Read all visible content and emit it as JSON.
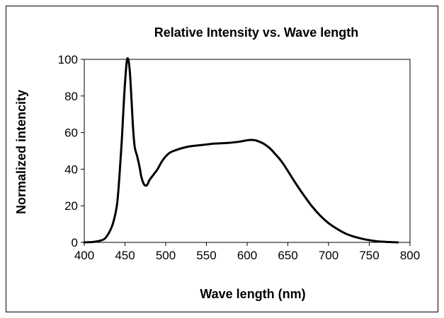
{
  "chart_data": {
    "type": "line",
    "title": "Relative Intensity vs. Wave length",
    "xlabel": "Wave length (nm)",
    "ylabel": "Normalized intencity",
    "xlim": [
      400,
      800
    ],
    "ylim": [
      0,
      100
    ],
    "x_ticks": [
      "400",
      "450",
      "500",
      "550",
      "600",
      "650",
      "700",
      "750",
      "800"
    ],
    "y_ticks": [
      "0",
      "20",
      "40",
      "60",
      "80",
      "100"
    ],
    "grid": false,
    "legend": "none",
    "series": [
      {
        "color": "#000000",
        "x": [
          400,
          410,
          420,
          425,
          430,
          435,
          440,
          443,
          446,
          449,
          452,
          454,
          456,
          458,
          460,
          462,
          465,
          468,
          470,
          473,
          476,
          478,
          480,
          485,
          490,
          495,
          500,
          505,
          510,
          520,
          530,
          540,
          550,
          560,
          570,
          580,
          590,
          600,
          605,
          610,
          615,
          620,
          625,
          630,
          635,
          640,
          645,
          650,
          660,
          670,
          680,
          690,
          700,
          710,
          720,
          730,
          740,
          750,
          760,
          770,
          780,
          785
        ],
        "y": [
          0,
          0.2,
          1,
          2,
          5,
          10,
          20,
          35,
          55,
          80,
          98,
          100,
          93,
          78,
          62,
          52,
          47,
          41,
          36,
          32,
          31,
          32,
          34,
          37,
          40,
          44,
          47,
          49,
          50,
          51.5,
          52.5,
          53,
          53.5,
          54,
          54.2,
          54.5,
          55,
          55.8,
          56,
          55.8,
          55,
          54,
          52.5,
          50.5,
          48,
          45.5,
          42.5,
          39,
          32,
          25.5,
          19.5,
          14.5,
          10.5,
          7.5,
          5,
          3.3,
          2.1,
          1.2,
          0.6,
          0.3,
          0.1,
          0
        ]
      }
    ]
  }
}
